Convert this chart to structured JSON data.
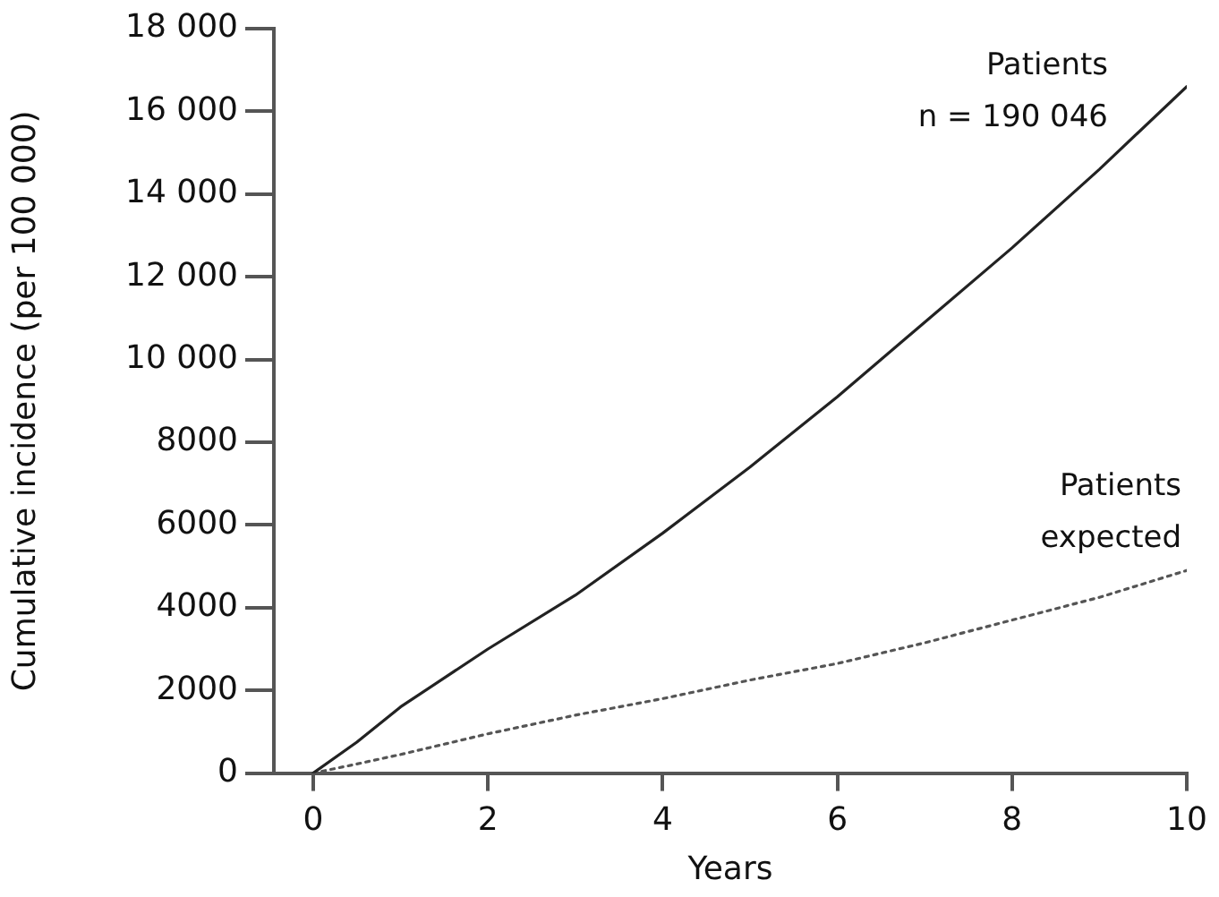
{
  "chart_data": {
    "type": "line",
    "xlabel": "Years",
    "ylabel": "Cumulative incidence (per 100 000)",
    "xlim": [
      -0.45,
      10
    ],
    "xticks": [
      0,
      2,
      4,
      6,
      8,
      10
    ],
    "ylim": [
      0,
      18000
    ],
    "yticks": [
      {
        "value": 0,
        "label": "0"
      },
      {
        "value": 2000,
        "label": "2000"
      },
      {
        "value": 4000,
        "label": "4000"
      },
      {
        "value": 6000,
        "label": "6000"
      },
      {
        "value": 8000,
        "label": "8000"
      },
      {
        "value": 10000,
        "label": "10 000"
      },
      {
        "value": 12000,
        "label": "12 000"
      },
      {
        "value": 14000,
        "label": "14 000"
      },
      {
        "value": 16000,
        "label": "16 000"
      },
      {
        "value": 18000,
        "label": "18 000"
      }
    ],
    "grid": false,
    "legend": false,
    "marker": "none",
    "x": [
      0,
      0.5,
      1,
      2,
      3,
      4,
      5,
      6,
      7,
      8,
      9,
      10
    ],
    "series": [
      {
        "name": "Patients",
        "color": "#222222",
        "line_style": "solid",
        "values": [
          0,
          750,
          1600,
          3000,
          4300,
          5800,
          7400,
          9100,
          10900,
          12700,
          14600,
          16600
        ]
      },
      {
        "name": "Patients expected",
        "color": "#555555",
        "line_style": "dotted",
        "values": [
          0,
          220,
          450,
          950,
          1400,
          1800,
          2250,
          2650,
          3150,
          3700,
          4250,
          4900
        ]
      }
    ],
    "annotations": [
      "n = 190 046"
    ]
  }
}
